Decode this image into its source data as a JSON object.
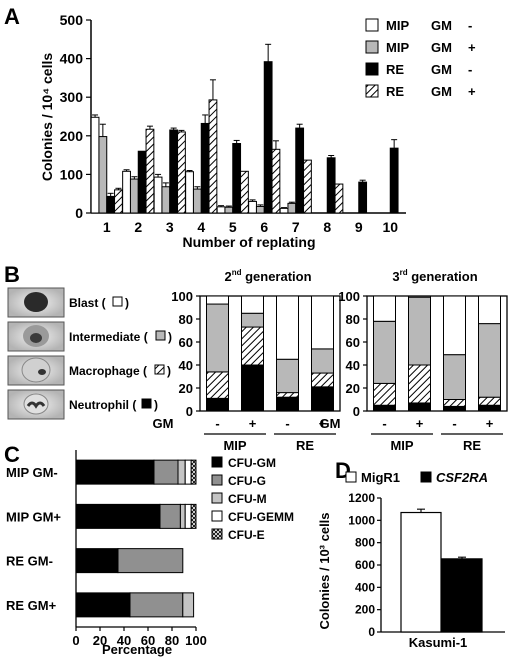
{
  "panels": {
    "A": {
      "letter": "A"
    },
    "B": {
      "letter": "B"
    },
    "C": {
      "letter": "C"
    },
    "D": {
      "letter": "D"
    }
  },
  "chart_data": [
    {
      "id": "A",
      "type": "bar",
      "xlabel": "Number of replating",
      "ylabel": "Colonies / 10⁴ cells",
      "ylim": [
        0,
        500
      ],
      "yticks": [
        0,
        100,
        200,
        300,
        400,
        500
      ],
      "categories": [
        "1",
        "2",
        "3",
        "4",
        "5",
        "6",
        "7",
        "8",
        "9",
        "10"
      ],
      "series": [
        {
          "name": "MIP GM -",
          "legend": {
            "label": "MIP",
            "gm": "GM",
            "sign": "-"
          },
          "fill": "white",
          "values": [
            248,
            108,
            93,
            107,
            16,
            30,
            12,
            0,
            0,
            0
          ],
          "errors": [
            6,
            4,
            7,
            3,
            3,
            4,
            2,
            0,
            0,
            0
          ]
        },
        {
          "name": "MIP GM +",
          "legend": {
            "label": "MIP",
            "gm": "GM",
            "sign": "+"
          },
          "fill": "grey",
          "values": [
            198,
            88,
            68,
            62,
            15,
            17,
            25,
            0,
            0,
            0
          ],
          "errors": [
            32,
            6,
            10,
            6,
            3,
            4,
            3,
            0,
            0,
            0
          ]
        },
        {
          "name": "RE GM -",
          "legend": {
            "label": "RE",
            "gm": "GM",
            "sign": "-"
          },
          "fill": "black",
          "values": [
            43,
            160,
            215,
            232,
            180,
            392,
            220,
            143,
            80,
            168
          ],
          "errors": [
            8,
            0,
            5,
            22,
            8,
            45,
            10,
            6,
            5,
            22
          ]
        },
        {
          "name": "RE GM +",
          "legend": {
            "label": "RE",
            "gm": "GM",
            "sign": "+"
          },
          "fill": "hatch",
          "values": [
            60,
            217,
            210,
            293,
            108,
            165,
            137,
            75,
            0,
            0
          ],
          "errors": [
            4,
            8,
            4,
            52,
            0,
            22,
            0,
            0,
            0,
            0
          ]
        }
      ]
    },
    {
      "id": "B",
      "type": "bar",
      "stacked": true,
      "legend": [
        {
          "label": "Blast (",
          "close": ")",
          "fill": "white"
        },
        {
          "label": "Intermediate (",
          "close": ")",
          "fill": "grey"
        },
        {
          "label": "Macrophage (",
          "close": ")",
          "fill": "hatch"
        },
        {
          "label": "Neutrophil (",
          "close": ")",
          "fill": "black"
        }
      ],
      "gm_label": "GM",
      "signs": [
        "-",
        "+",
        "-",
        "+"
      ],
      "groups": [
        "MIP",
        "RE"
      ],
      "ylim": [
        0,
        100
      ],
      "yticks": [
        0,
        20,
        40,
        60,
        80,
        100
      ],
      "subcharts": [
        {
          "title_base": "2",
          "title_sup": "nd",
          "title_rest": " generation",
          "bars": [
            {
              "neutrophil": 11,
              "macrophage": 23,
              "intermediate": 59,
              "blast": 7
            },
            {
              "neutrophil": 40,
              "macrophage": 33,
              "intermediate": 12,
              "blast": 15
            },
            {
              "neutrophil": 12,
              "macrophage": 4,
              "intermediate": 29,
              "blast": 55
            },
            {
              "neutrophil": 21,
              "macrophage": 12,
              "intermediate": 21,
              "blast": 46
            }
          ]
        },
        {
          "title_base": "3",
          "title_sup": "rd",
          "title_rest": " generation",
          "bars": [
            {
              "neutrophil": 5,
              "macrophage": 19,
              "intermediate": 54,
              "blast": 22
            },
            {
              "neutrophil": 7,
              "macrophage": 33,
              "intermediate": 59,
              "blast": 1
            },
            {
              "neutrophil": 4,
              "macrophage": 6,
              "intermediate": 39,
              "blast": 51
            },
            {
              "neutrophil": 5,
              "macrophage": 7,
              "intermediate": 64,
              "blast": 24
            }
          ]
        }
      ]
    },
    {
      "id": "C",
      "type": "bar",
      "orientation": "horizontal",
      "stacked": true,
      "xlabel": "Percentage",
      "xlim": [
        0,
        100
      ],
      "xticks": [
        0,
        20,
        40,
        60,
        80,
        100
      ],
      "categories": [
        "MIP  GM-",
        "MIP  GM+",
        "RE  GM-",
        "RE  GM+"
      ],
      "series": [
        {
          "name": "CFU-GM",
          "fill": "black",
          "values": [
            65,
            70,
            35,
            45
          ]
        },
        {
          "name": "CFU-G",
          "fill": "#909090",
          "values": [
            20,
            17,
            54,
            44
          ]
        },
        {
          "name": "CFU-M",
          "fill": "#c4c4c4",
          "values": [
            6,
            4,
            0,
            9
          ]
        },
        {
          "name": "CFU-GEMM",
          "fill": "white",
          "values": [
            5,
            5,
            0,
            0
          ]
        },
        {
          "name": "CFU-E",
          "fill": "crosshatch",
          "values": [
            4,
            4,
            0,
            0
          ]
        }
      ]
    },
    {
      "id": "D",
      "type": "bar",
      "ylabel": "Colonies / 10³ cells",
      "xlabel": "Kasumi-1",
      "ylim": [
        0,
        1200
      ],
      "yticks": [
        0,
        200,
        400,
        600,
        800,
        1000,
        1200
      ],
      "series": [
        {
          "name": "MigR1",
          "fill": "white",
          "value": 1070,
          "error": 30
        },
        {
          "name": "CSF2RA",
          "fill": "black",
          "value": 655,
          "error": 15
        }
      ]
    }
  ]
}
